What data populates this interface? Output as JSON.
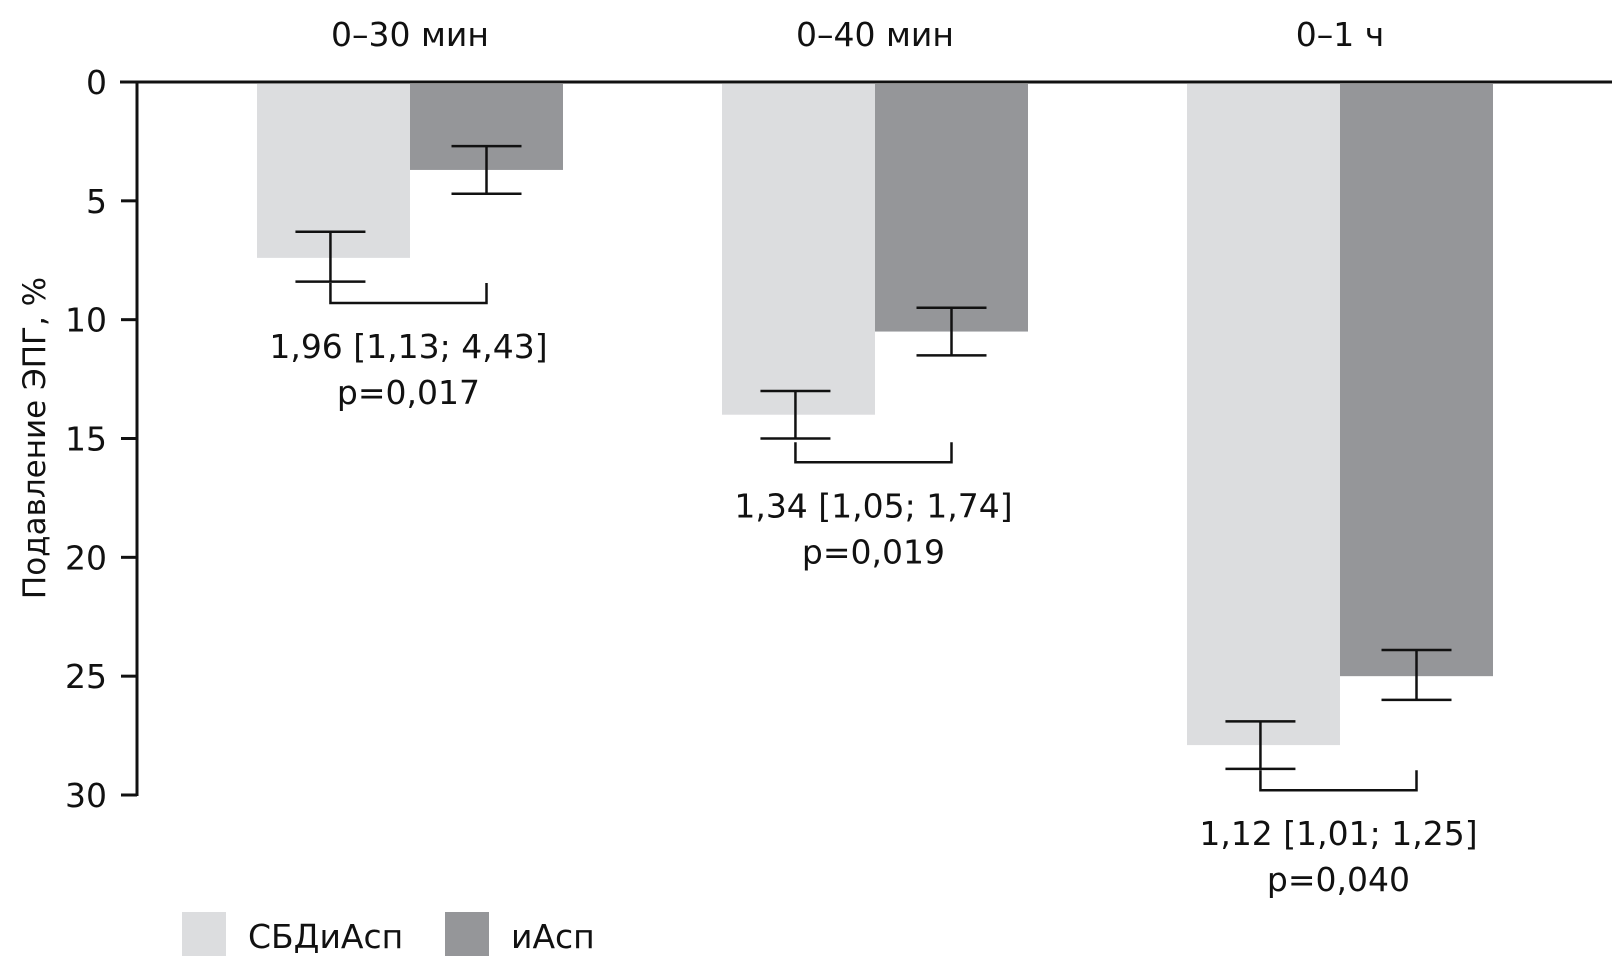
{
  "chart_data": {
    "type": "bar",
    "orientation": "vertical-inverted",
    "title": "",
    "xlabel": "",
    "ylabel": "Подавление ЭПГ, %",
    "ylim": [
      0,
      30
    ],
    "y_inverted": true,
    "yticks": [
      0,
      5,
      10,
      15,
      20,
      25,
      30
    ],
    "ytick_labels": [
      "0",
      "5",
      "10",
      "15",
      "20",
      "25",
      "30"
    ],
    "x_axis_position": "top",
    "grid": false,
    "legend_position": "bottom-left",
    "categories": [
      "0–30 мин",
      "0–40 мин",
      "0–1 ч"
    ],
    "series": [
      {
        "name": "СБДиАсп",
        "color": "#dcdddf",
        "values": [
          7.4,
          14.0,
          27.9
        ],
        "error_low": [
          6.3,
          13.0,
          26.9
        ],
        "error_high": [
          8.4,
          15.0,
          28.9
        ]
      },
      {
        "name": "иАсп",
        "color": "#959699",
        "values": [
          3.7,
          10.5,
          25.0
        ],
        "error_low": [
          2.7,
          9.5,
          23.9
        ],
        "error_high": [
          4.7,
          11.5,
          26.0
        ]
      }
    ],
    "annotations": [
      {
        "category": "0–30 мин",
        "bracket_at": 9.3,
        "line1": "1,96 [1,13; 4,43]",
        "line2": "p=0,017"
      },
      {
        "category": "0–40 мин",
        "bracket_at": 16.0,
        "line1": "1,34 [1,05; 1,74]",
        "line2": "p=0,019"
      },
      {
        "category": "0–1 ч",
        "bracket_at": 29.8,
        "line1": "1,12 [1,01; 1,25]",
        "line2": "p=0,040"
      }
    ]
  }
}
